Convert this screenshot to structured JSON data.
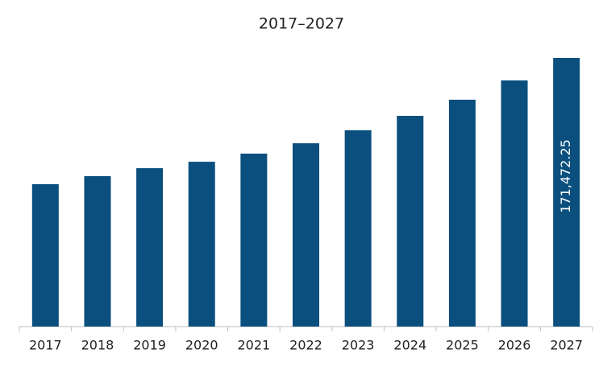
{
  "chart_data": {
    "type": "bar",
    "title": "2017–2027",
    "categories": [
      "2017",
      "2018",
      "2019",
      "2020",
      "2021",
      "2022",
      "2023",
      "2024",
      "2025",
      "2026",
      "2027"
    ],
    "values": [
      90900,
      96000,
      101100,
      105200,
      110400,
      117000,
      125300,
      134500,
      144800,
      157100,
      171472.25
    ],
    "value_labels": [
      null,
      null,
      null,
      null,
      null,
      null,
      null,
      null,
      null,
      null,
      "171,472.25"
    ],
    "color": "#0a4f7e"
  }
}
